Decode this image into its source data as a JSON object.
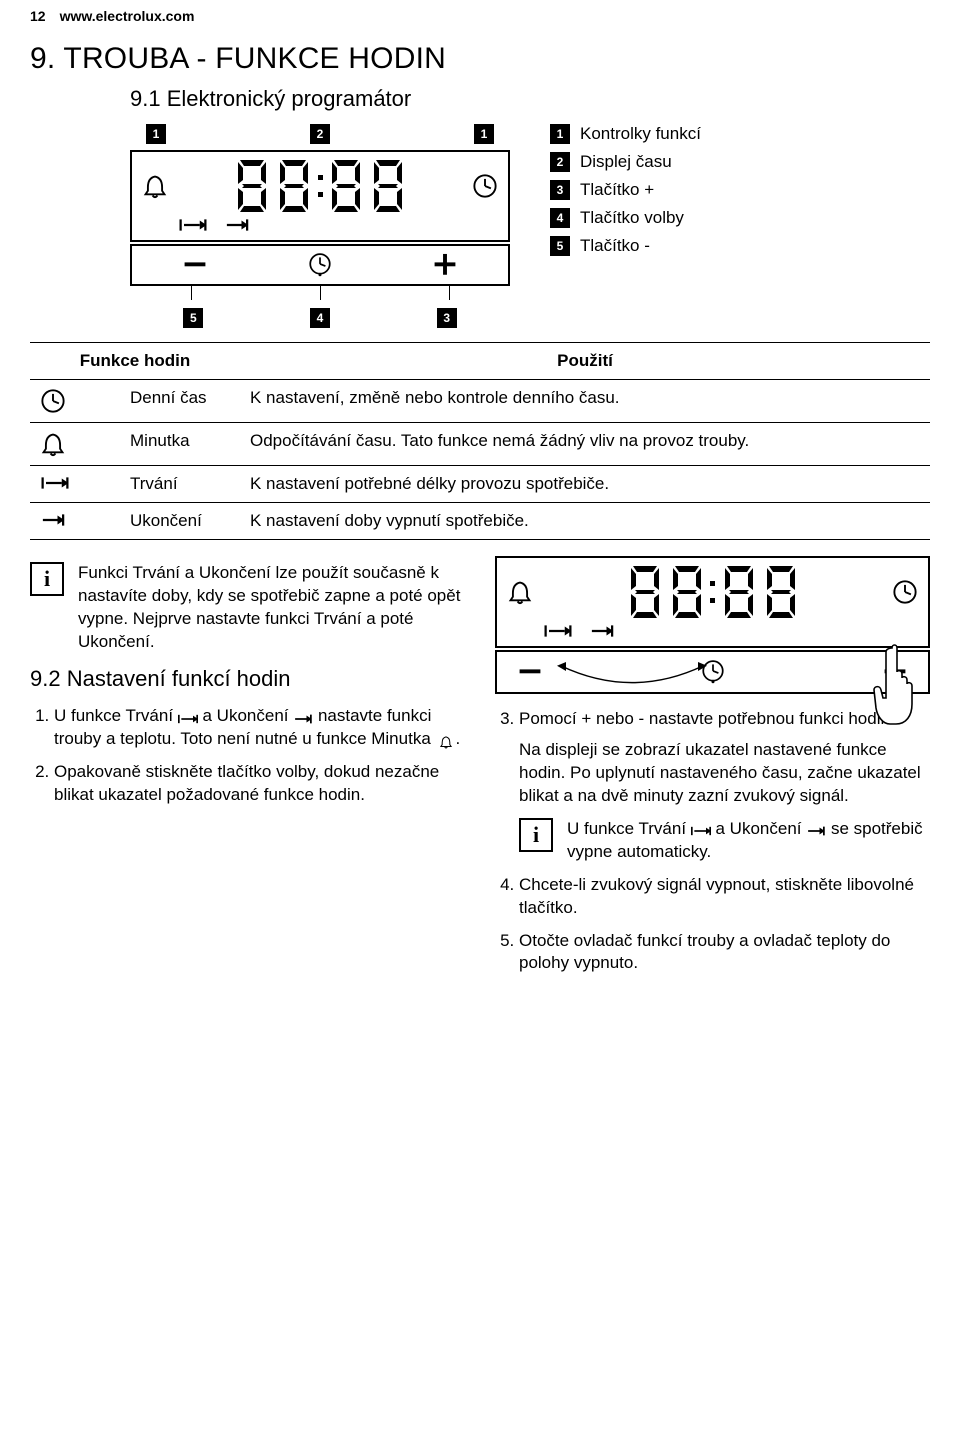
{
  "header": {
    "page_num": "12",
    "url": "www.electrolux.com"
  },
  "section": {
    "title": "9.  TROUBA - FUNKCE HODIN",
    "sub1": "9.1 Elektronický programátor",
    "sub2": "9.2 Nastavení funkcí hodin"
  },
  "callouts_top": [
    "1",
    "2",
    "1"
  ],
  "callouts_bottom": [
    "5",
    "4",
    "3"
  ],
  "legend": [
    {
      "n": "1",
      "label": "Kontrolky funkcí"
    },
    {
      "n": "2",
      "label": "Displej času"
    },
    {
      "n": "3",
      "label": "Tlačítko +"
    },
    {
      "n": "4",
      "label": "Tlačítko volby"
    },
    {
      "n": "5",
      "label": "Tlačítko -"
    }
  ],
  "table": {
    "h1": "Funkce hodin",
    "h2": "Použití",
    "rows": [
      {
        "icon": "clock",
        "name": "Denní čas",
        "use": "K nastavení, změně nebo kontrole denního času."
      },
      {
        "icon": "bell",
        "name": "Minutka",
        "use": "Odpočítávání času. Tato funkce nemá žádný vliv na provoz trouby."
      },
      {
        "icon": "dur",
        "name": "Trvání",
        "use": "K nastavení potřebné délky provozu spotřebiče."
      },
      {
        "icon": "end",
        "name": "Ukončení",
        "use": "K nastavení doby vypnutí spotřebiče."
      }
    ]
  },
  "info1": "Funkci Trvání a Ukončení lze použít současně k nastavíte doby, kdy se spotřebič zapne a poté opět vypne. Nejprve nastavte funkci Trvání a poté Ukončení.",
  "steps_left": [
    "U funkce Trvání {dur} a Ukončení {end} nastavte funkci trouby a teplotu. Toto není nutné u funkce Minutka {bell}.",
    "Opakovaně stiskněte tlačítko volby, dokud nezačne blikat ukazatel požadované funkce hodin."
  ],
  "steps_right": {
    "s3_a": "Pomocí + nebo - nastavte potřebnou funkci hodin.",
    "s3_b": "Na displeji se zobrazí ukazatel nastavené funkce hodin. Po uplynutí nastaveného času, začne ukazatel blikat a na dvě minuty zazní zvukový signál.",
    "info2": "U funkce Trvání {dur} a Ukončení {end} se spotřebič vypne automaticky.",
    "s4": "Chcete-li zvukový signál vypnout, stiskněte libovolné tlačítko.",
    "s5": "Otočte ovladač funkcí trouby a ovladač teploty do polohy vypnuto."
  },
  "colors": {
    "text": "#000000",
    "bg": "#ffffff"
  }
}
